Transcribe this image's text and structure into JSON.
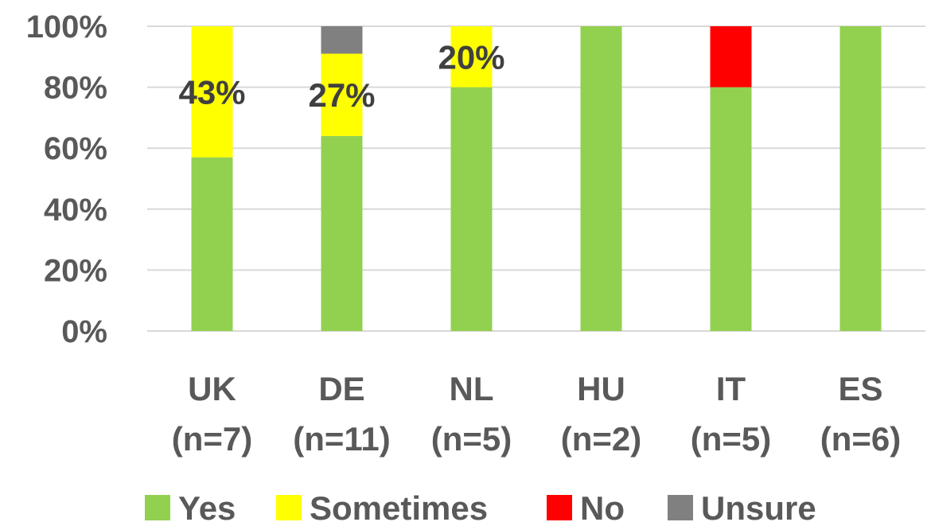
{
  "chart_data": {
    "type": "bar",
    "stacked": true,
    "categories": [
      "UK",
      "DE",
      "NL",
      "HU",
      "IT",
      "ES"
    ],
    "category_counts": [
      "(n=7)",
      "(n=11)",
      "(n=5)",
      "(n=2)",
      "(n=5)",
      "(n=6)"
    ],
    "series": [
      {
        "name": "Yes",
        "color": "#92d050",
        "values": [
          57,
          64,
          80,
          100,
          80,
          100
        ]
      },
      {
        "name": "Sometimes",
        "color": "#ffff00",
        "values": [
          43,
          27,
          20,
          0,
          0,
          0
        ]
      },
      {
        "name": "No",
        "color": "#ff0000",
        "values": [
          0,
          0,
          0,
          0,
          20,
          0
        ]
      },
      {
        "name": "Unsure",
        "color": "#808080",
        "values": [
          0,
          9,
          0,
          0,
          0,
          0
        ]
      }
    ],
    "data_labels": [
      {
        "category": "UK",
        "series": "Sometimes",
        "text": "43%"
      },
      {
        "category": "DE",
        "series": "Sometimes",
        "text": "27%"
      },
      {
        "category": "NL",
        "series": "Sometimes",
        "text": "20%"
      }
    ],
    "yticks": [
      "0%",
      "20%",
      "40%",
      "60%",
      "80%",
      "100%"
    ],
    "ylim": [
      0,
      100
    ],
    "grid": true,
    "legend_position": "bottom"
  }
}
